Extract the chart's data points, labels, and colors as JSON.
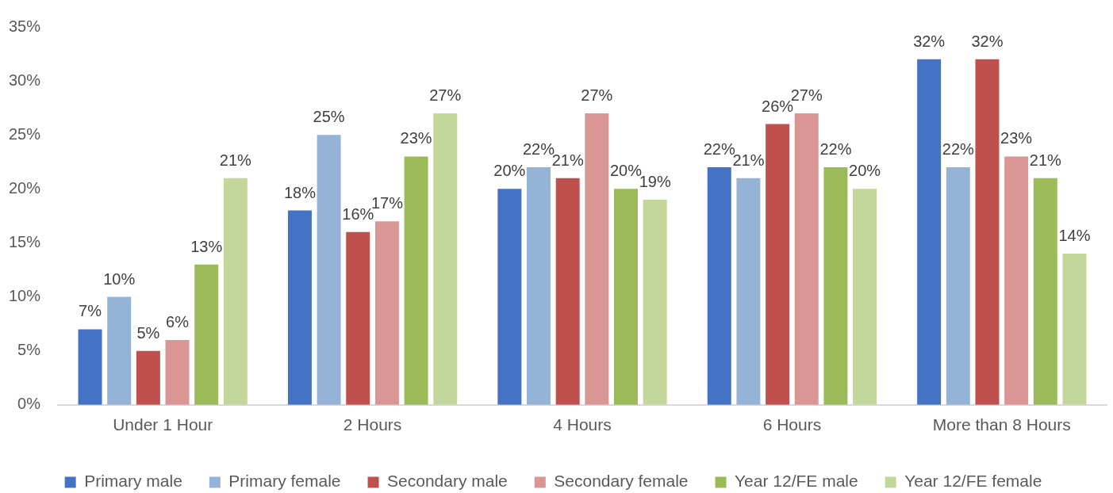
{
  "chart_data": {
    "type": "bar",
    "categories": [
      "Under 1 Hour",
      "2 Hours",
      "4 Hours",
      "6 Hours",
      "More than 8 Hours"
    ],
    "series": [
      {
        "name": "Primary male",
        "color": "#4472c4",
        "values": [
          7,
          18,
          20,
          22,
          32
        ],
        "value_labels": [
          "7%",
          "18%",
          "20%",
          "22%",
          "32%"
        ]
      },
      {
        "name": "Primary female",
        "color": "#95b3d7",
        "values": [
          10,
          25,
          22,
          21,
          22
        ],
        "value_labels": [
          "10%",
          "25%",
          "22%",
          "21%",
          "22%"
        ]
      },
      {
        "name": "Secondary male",
        "color": "#c0504d",
        "values": [
          5,
          16,
          21,
          26,
          32
        ],
        "value_labels": [
          "5%",
          "16%",
          "21%",
          "26%",
          "32%"
        ]
      },
      {
        "name": "Secondary female",
        "color": "#da9694",
        "values": [
          6,
          17,
          27,
          27,
          23
        ],
        "value_labels": [
          "6%",
          "17%",
          "27%",
          "27%",
          "23%"
        ]
      },
      {
        "name": "Year 12/FE male",
        "color": "#9bbb59",
        "values": [
          13,
          23,
          20,
          22,
          21
        ],
        "value_labels": [
          "13%",
          "23%",
          "20%",
          "22%",
          "21%"
        ]
      },
      {
        "name": "Year 12/FE female",
        "color": "#c4d79b",
        "values": [
          21,
          27,
          19,
          20,
          14
        ],
        "value_labels": [
          "21%",
          "27%",
          "19%",
          "20%",
          "14%"
        ]
      }
    ],
    "ylim": [
      0,
      35
    ],
    "yticks": [
      {
        "value": 0,
        "label": "0%"
      },
      {
        "value": 5,
        "label": "5%"
      },
      {
        "value": 10,
        "label": "10%"
      },
      {
        "value": 15,
        "label": "15%"
      },
      {
        "value": 20,
        "label": "20%"
      },
      {
        "value": 25,
        "label": "25%"
      },
      {
        "value": 30,
        "label": "30%"
      },
      {
        "value": 35,
        "label": "35%"
      }
    ],
    "legend": "bottom"
  }
}
